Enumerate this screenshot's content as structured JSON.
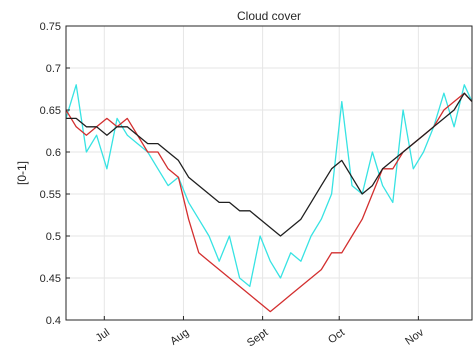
{
  "chart_data": {
    "type": "line",
    "title": "Cloud cover",
    "ylabel": "[0-1]",
    "xlabel": "",
    "ylim": [
      0.4,
      0.75
    ],
    "yticks": [
      0.4,
      0.45,
      0.5,
      0.55,
      0.6,
      0.65,
      0.7,
      0.75
    ],
    "ytick_labels": [
      "0.4",
      "0.45",
      "0.5",
      "0.55",
      "0.6",
      "0.65",
      "0.7",
      "0.75"
    ],
    "xlim": [
      "2000-06-16",
      "2000-11-22"
    ],
    "xticks": [
      {
        "label": "Jul",
        "date": "2000-07-01"
      },
      {
        "label": "Aug",
        "date": "2000-08-01"
      },
      {
        "label": "Sept",
        "date": "2000-09-01"
      },
      {
        "label": "Oct",
        "date": "2000-10-01"
      },
      {
        "label": "Nov",
        "date": "2000-11-01"
      }
    ],
    "grid": true,
    "series": [
      {
        "color": "#37e3e3",
        "x": [
          "2000-06-16",
          "2000-06-20",
          "2000-06-24",
          "2000-06-28",
          "2000-07-02",
          "2000-07-06",
          "2000-07-10",
          "2000-07-14",
          "2000-07-18",
          "2000-07-22",
          "2000-07-26",
          "2000-07-30",
          "2000-08-03",
          "2000-08-07",
          "2000-08-11",
          "2000-08-15",
          "2000-08-19",
          "2000-08-23",
          "2000-08-27",
          "2000-08-31",
          "2000-09-04",
          "2000-09-08",
          "2000-09-12",
          "2000-09-16",
          "2000-09-20",
          "2000-09-24",
          "2000-09-28",
          "2000-10-02",
          "2000-10-06",
          "2000-10-10",
          "2000-10-14",
          "2000-10-18",
          "2000-10-22",
          "2000-10-26",
          "2000-10-30",
          "2000-11-03",
          "2000-11-07",
          "2000-11-11",
          "2000-11-15",
          "2000-11-19",
          "2000-11-22"
        ],
        "values": [
          0.64,
          0.68,
          0.6,
          0.62,
          0.58,
          0.64,
          0.62,
          0.61,
          0.6,
          0.58,
          0.56,
          0.57,
          0.54,
          0.52,
          0.5,
          0.47,
          0.5,
          0.45,
          0.44,
          0.5,
          0.47,
          0.45,
          0.48,
          0.47,
          0.5,
          0.52,
          0.55,
          0.66,
          0.56,
          0.55,
          0.6,
          0.56,
          0.54,
          0.65,
          0.58,
          0.6,
          0.63,
          0.67,
          0.63,
          0.68,
          0.66
        ]
      },
      {
        "color": "#d32f2f",
        "x": [
          "2000-06-16",
          "2000-06-20",
          "2000-06-24",
          "2000-06-28",
          "2000-07-02",
          "2000-07-06",
          "2000-07-10",
          "2000-07-14",
          "2000-07-18",
          "2000-07-22",
          "2000-07-26",
          "2000-07-30",
          "2000-08-03",
          "2000-08-07",
          "2000-08-11",
          "2000-08-15",
          "2000-08-19",
          "2000-08-23",
          "2000-08-27",
          "2000-08-31",
          "2000-09-04",
          "2000-09-08",
          "2000-09-12",
          "2000-09-16",
          "2000-09-20",
          "2000-09-24",
          "2000-09-28",
          "2000-10-02",
          "2000-10-06",
          "2000-10-10",
          "2000-10-14",
          "2000-10-18",
          "2000-10-22",
          "2000-10-26",
          "2000-10-30",
          "2000-11-03",
          "2000-11-07",
          "2000-11-11",
          "2000-11-15",
          "2000-11-19",
          "2000-11-22"
        ],
        "values": [
          0.65,
          0.63,
          0.62,
          0.63,
          0.64,
          0.63,
          0.64,
          0.62,
          0.6,
          0.6,
          0.58,
          0.57,
          0.52,
          0.48,
          0.47,
          0.46,
          0.45,
          0.44,
          0.43,
          0.42,
          0.41,
          0.42,
          0.43,
          0.44,
          0.45,
          0.46,
          0.48,
          0.48,
          0.5,
          0.52,
          0.55,
          0.58,
          0.58,
          0.6,
          0.61,
          0.62,
          0.63,
          0.65,
          0.66,
          0.67,
          0.66
        ]
      },
      {
        "color": "#202020",
        "x": [
          "2000-06-16",
          "2000-06-20",
          "2000-06-24",
          "2000-06-28",
          "2000-07-02",
          "2000-07-06",
          "2000-07-10",
          "2000-07-14",
          "2000-07-18",
          "2000-07-22",
          "2000-07-26",
          "2000-07-30",
          "2000-08-03",
          "2000-08-07",
          "2000-08-11",
          "2000-08-15",
          "2000-08-19",
          "2000-08-23",
          "2000-08-27",
          "2000-08-31",
          "2000-09-04",
          "2000-09-08",
          "2000-09-12",
          "2000-09-16",
          "2000-09-20",
          "2000-09-24",
          "2000-09-28",
          "2000-10-02",
          "2000-10-06",
          "2000-10-10",
          "2000-10-14",
          "2000-10-18",
          "2000-10-22",
          "2000-10-26",
          "2000-10-30",
          "2000-11-03",
          "2000-11-07",
          "2000-11-11",
          "2000-11-15",
          "2000-11-19",
          "2000-11-22"
        ],
        "values": [
          0.64,
          0.64,
          0.63,
          0.63,
          0.62,
          0.63,
          0.63,
          0.62,
          0.61,
          0.61,
          0.6,
          0.59,
          0.57,
          0.56,
          0.55,
          0.54,
          0.54,
          0.53,
          0.53,
          0.52,
          0.51,
          0.5,
          0.51,
          0.52,
          0.54,
          0.56,
          0.58,
          0.59,
          0.57,
          0.55,
          0.56,
          0.58,
          0.59,
          0.6,
          0.61,
          0.62,
          0.63,
          0.64,
          0.65,
          0.67,
          0.66
        ]
      }
    ]
  }
}
